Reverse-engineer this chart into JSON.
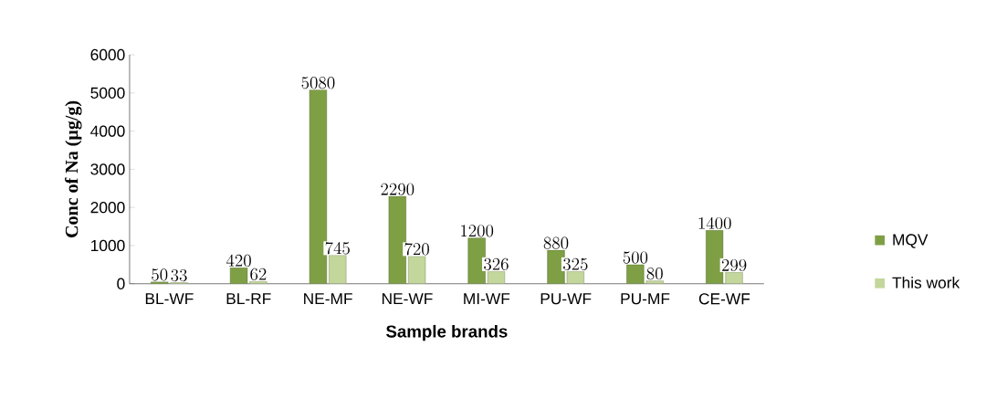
{
  "chart_data": {
    "type": "bar",
    "xlabel": "Sample brands",
    "ylabel": "Conc of Na (µg/g)",
    "categories": [
      "BL-WF",
      "BL-RF",
      "NE-MF",
      "NE-WF",
      "MI-WF",
      "PU-WF",
      "PU-MF",
      "CE-WF"
    ],
    "series": [
      {
        "name": "MQV",
        "color": "#7f9f45",
        "values": [
          50,
          420,
          5080,
          2290,
          1200,
          880,
          500,
          1400
        ]
      },
      {
        "name": "This work",
        "color": "#c3d69b",
        "values": [
          33,
          62,
          745,
          720,
          326,
          325,
          80,
          299
        ]
      }
    ],
    "ylim": [
      0,
      6000
    ],
    "yticks": [
      0,
      1000,
      2000,
      3000,
      4000,
      5000,
      6000
    ],
    "data_labels": true,
    "legend": "right",
    "grid": false
  }
}
